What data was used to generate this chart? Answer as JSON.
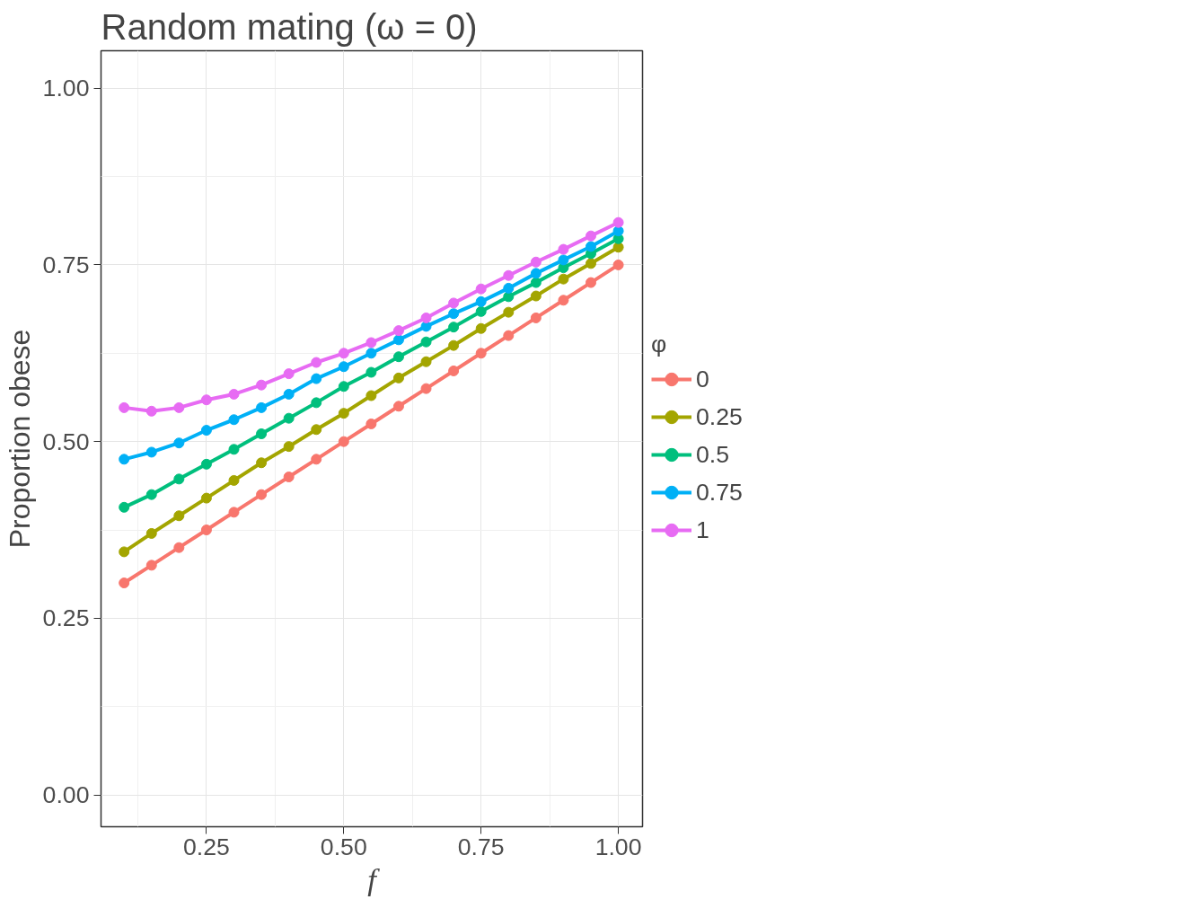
{
  "chart_data": {
    "type": "line",
    "title": "Random mating (ω = 0)",
    "xlabel": "f",
    "ylabel": "Proportion obese",
    "legend_title": "φ",
    "x": [
      0.1,
      0.15,
      0.2,
      0.25,
      0.3,
      0.35,
      0.4,
      0.45,
      0.5,
      0.55,
      0.6,
      0.65,
      0.7,
      0.75,
      0.8,
      0.85,
      0.9,
      0.95,
      1.0
    ],
    "series": [
      {
        "name": "0",
        "color": "#f8766d",
        "values": [
          0.3,
          0.325,
          0.35,
          0.375,
          0.4,
          0.425,
          0.45,
          0.475,
          0.5,
          0.525,
          0.55,
          0.575,
          0.6,
          0.625,
          0.65,
          0.675,
          0.7,
          0.725,
          0.75
        ]
      },
      {
        "name": "0.25",
        "color": "#a3a500",
        "values": [
          0.344,
          0.37,
          0.395,
          0.42,
          0.445,
          0.47,
          0.493,
          0.517,
          0.54,
          0.565,
          0.59,
          0.613,
          0.636,
          0.66,
          0.683,
          0.706,
          0.73,
          0.752,
          0.775
        ]
      },
      {
        "name": "0.5",
        "color": "#00bf7d",
        "values": [
          0.407,
          0.425,
          0.447,
          0.468,
          0.489,
          0.511,
          0.533,
          0.555,
          0.578,
          0.598,
          0.62,
          0.641,
          0.662,
          0.684,
          0.705,
          0.725,
          0.746,
          0.766,
          0.787
        ]
      },
      {
        "name": "0.75",
        "color": "#00b0f6",
        "values": [
          0.475,
          0.485,
          0.498,
          0.516,
          0.531,
          0.548,
          0.567,
          0.589,
          0.606,
          0.625,
          0.644,
          0.663,
          0.681,
          0.698,
          0.717,
          0.738,
          0.757,
          0.776,
          0.798
        ]
      },
      {
        "name": "1",
        "color": "#e76bf3",
        "values": [
          0.548,
          0.543,
          0.548,
          0.559,
          0.567,
          0.58,
          0.596,
          0.612,
          0.625,
          0.64,
          0.657,
          0.675,
          0.696,
          0.716,
          0.735,
          0.754,
          0.772,
          0.791,
          0.81
        ]
      }
    ],
    "xlim": [
      0.058,
      1.044
    ],
    "ylim": [
      -0.045,
      1.053
    ],
    "xticks": [
      {
        "value": 0.25,
        "label": "0.25"
      },
      {
        "value": 0.5,
        "label": "0.50"
      },
      {
        "value": 0.75,
        "label": "0.75"
      },
      {
        "value": 1.0,
        "label": "1.00"
      }
    ],
    "yticks": [
      {
        "value": 0,
        "label": "0.00"
      },
      {
        "value": 0.25,
        "label": "0.25"
      },
      {
        "value": 0.5,
        "label": "0.50"
      },
      {
        "value": 0.75,
        "label": "0.75"
      },
      {
        "value": 1.0,
        "label": "1.00"
      }
    ],
    "grid": true,
    "legend": "right",
    "marker": "circle",
    "line_style": "solid"
  }
}
